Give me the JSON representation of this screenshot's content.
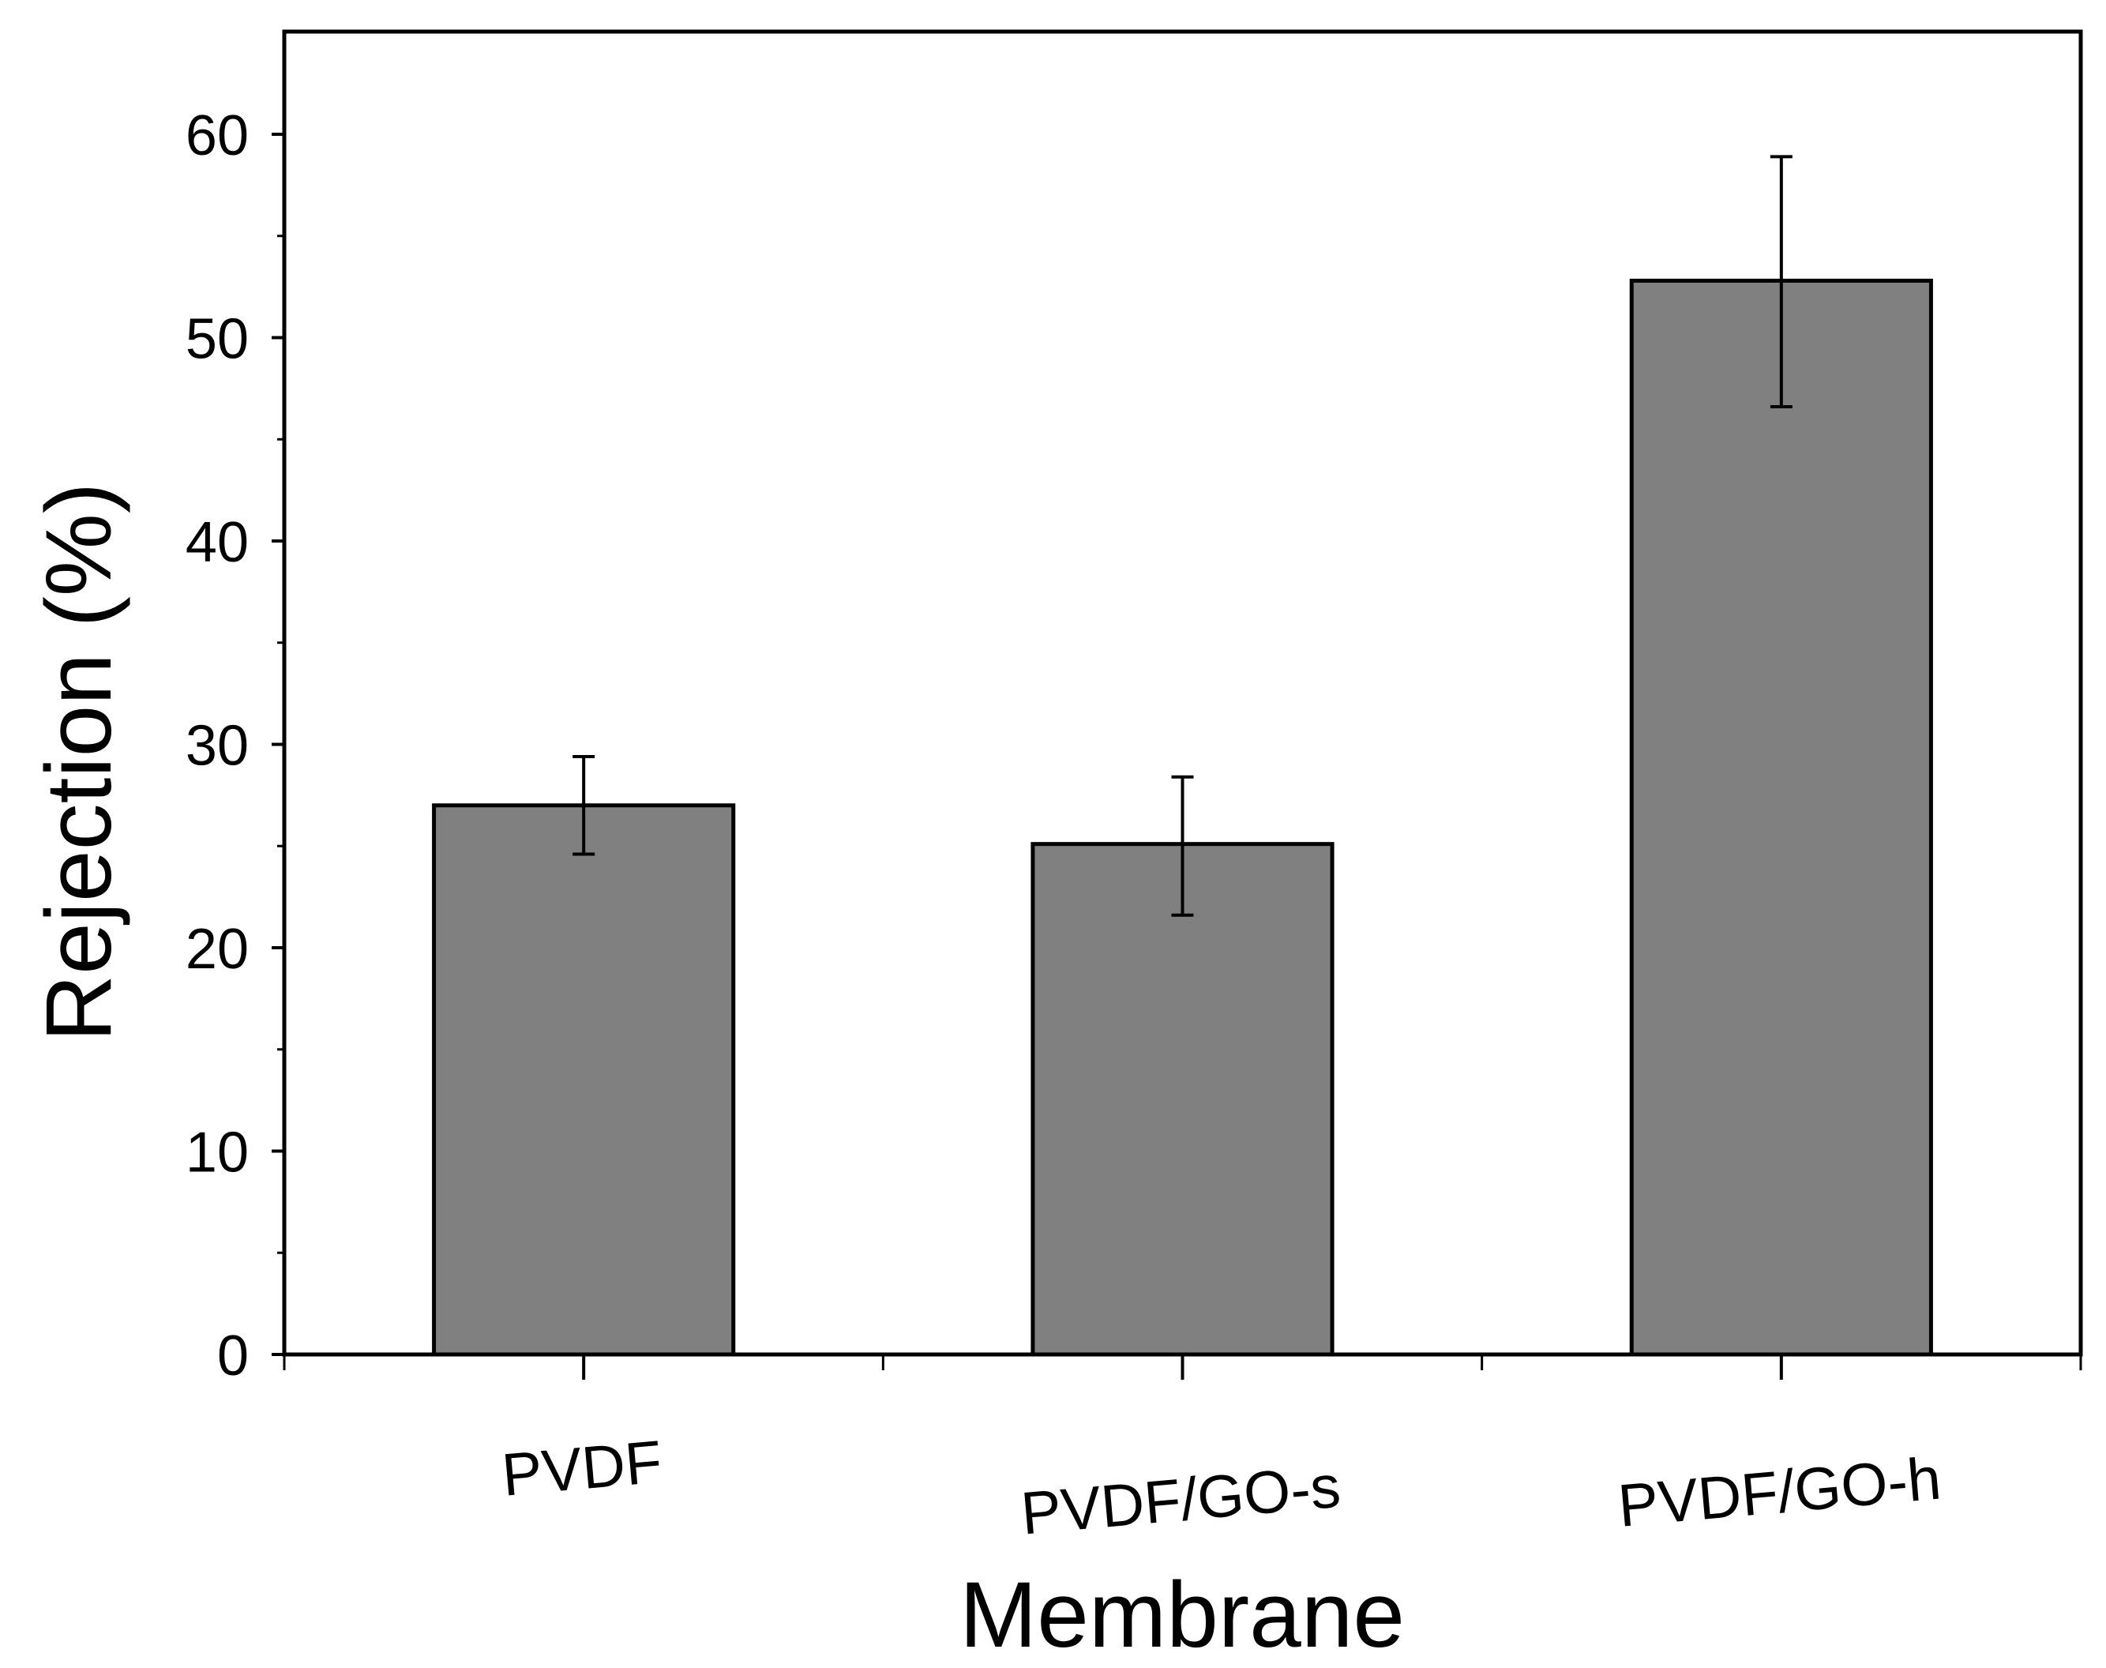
{
  "chart_data": {
    "type": "bar",
    "title": "",
    "xlabel": "Membrane",
    "ylabel": "Rejection (%)",
    "categories": [
      "PVDF",
      "PVDF/GO-s",
      "PVDF/GO-h"
    ],
    "values": [
      27.0,
      25.1,
      52.8
    ],
    "error_low": [
      24.6,
      21.6,
      46.6
    ],
    "error_high": [
      29.4,
      28.4,
      58.9
    ],
    "ylim": [
      0,
      65
    ],
    "yticks": [
      0,
      10,
      20,
      30,
      40,
      50,
      60
    ],
    "y_minor_step": 5,
    "grid": false,
    "bar_color": "#808080",
    "edge_color": "#000000"
  }
}
